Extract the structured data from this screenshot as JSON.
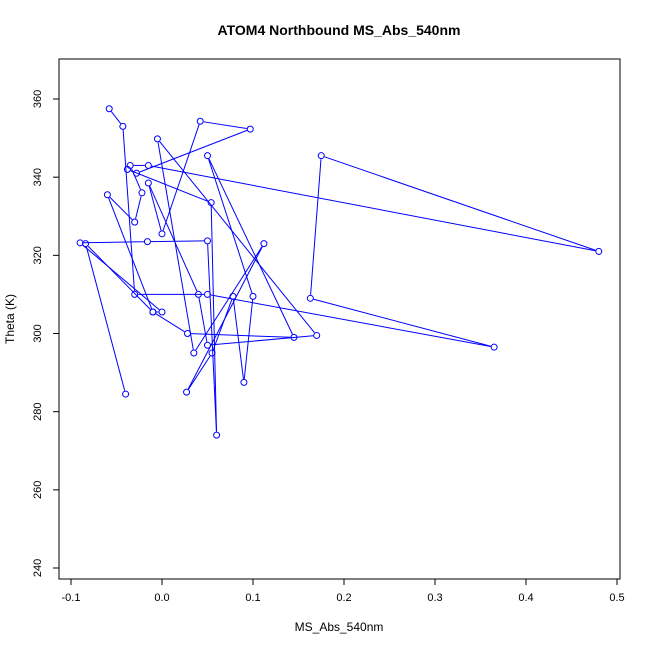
{
  "chart_data": {
    "type": "scatter",
    "mode": "lines+markers",
    "title": "ATOM4 Northbound MS_Abs_540nm",
    "xlabel": "MS_Abs_540nm",
    "ylabel": "Theta (K)",
    "xlim": [
      -0.1,
      0.5
    ],
    "ylim": [
      240,
      360
    ],
    "xticks": [
      -0.1,
      0.0,
      0.1,
      0.2,
      0.3,
      0.4,
      0.5
    ],
    "xtick_labels": [
      "-0.1",
      "0.0",
      "0.1",
      "0.2",
      "0.3",
      "0.4",
      "0.5"
    ],
    "yticks": [
      240,
      260,
      280,
      300,
      320,
      340,
      360
    ],
    "ytick_labels": [
      "240",
      "260",
      "280",
      "300",
      "320",
      "340",
      "360"
    ],
    "grid": false,
    "series_color": "#0000ff",
    "x": [
      -0.04,
      -0.084,
      -0.01,
      0.0,
      -0.09,
      -0.016,
      0.05,
      0.06,
      0.054,
      -0.038,
      -0.028,
      0.097,
      0.042,
      0.0,
      -0.015,
      0.04,
      0.05,
      0.17,
      -0.005,
      0.035,
      0.112,
      0.027,
      0.055,
      0.078,
      0.09,
      0.1,
      0.05,
      0.145,
      0.028,
      -0.01,
      -0.06,
      -0.03,
      -0.022,
      -0.035,
      -0.015,
      0.48,
      0.175,
      0.163,
      0.365,
      0.05,
      -0.03,
      -0.043,
      -0.058
    ],
    "y": [
      284.5,
      323,
      305.5,
      305.5,
      323.2,
      323.5,
      323.7,
      274,
      333.5,
      342,
      341,
      352.3,
      354.3,
      325.5,
      338.5,
      310,
      297,
      299.5,
      349.8,
      295,
      323,
      285,
      295,
      309.5,
      287.5,
      309.5,
      345.5,
      299,
      300,
      305.5,
      335.5,
      328.5,
      336,
      343,
      343,
      321,
      345.5,
      309,
      296.5,
      310,
      310,
      353,
      357.5
    ]
  }
}
